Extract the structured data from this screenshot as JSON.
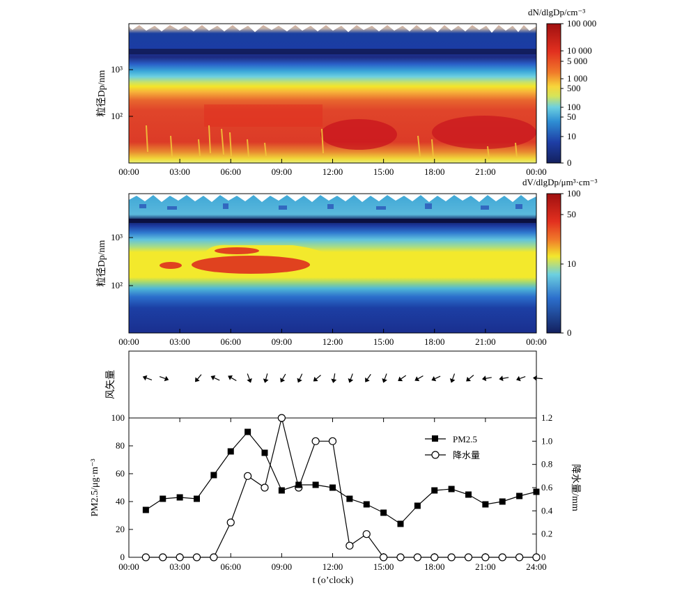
{
  "heatmap_number": {
    "ylabel": "粒径Dp/nm",
    "y_ticks": [
      "10²",
      "10³"
    ],
    "x_ticks": [
      "00:00",
      "03:00",
      "06:00",
      "09:00",
      "12:00",
      "15:00",
      "18:00",
      "21:00",
      "00:00"
    ],
    "colorbar_title": "dN/dlgDp/cm⁻³",
    "colorbar_ticks": [
      "100 000",
      "10 000",
      "5 000",
      "1 000",
      "500",
      "100",
      "50",
      "10",
      "0"
    ]
  },
  "heatmap_volume": {
    "ylabel": "粒径Dp/nm",
    "y_ticks": [
      "10²",
      "10³"
    ],
    "x_ticks": [
      "00:00",
      "03:00",
      "06:00",
      "09:00",
      "12:00",
      "15:00",
      "18:00",
      "21:00",
      "00:00"
    ],
    "colorbar_title": "dV/dlgDp/μm³·cm⁻³",
    "colorbar_ticks": [
      "100",
      "50",
      "10",
      "0"
    ]
  },
  "wind": {
    "ylabel": "风矢量"
  },
  "bottom": {
    "ylabel_left": "PM2.5/μg·m⁻³",
    "ylabel_right": "降水量/mm",
    "xlabel": "t (o’clock)",
    "x_ticks": [
      "00:00",
      "03:00",
      "06:00",
      "09:00",
      "12:00",
      "15:00",
      "18:00",
      "21:00",
      "24:00"
    ],
    "y_left_ticks": [
      "0",
      "20",
      "40",
      "60",
      "80",
      "100"
    ],
    "y_right_ticks": [
      "0",
      "0.2",
      "0.4",
      "0.6",
      "0.8",
      "1.0",
      "1.2"
    ],
    "legend_pm": "PM2.5",
    "legend_rain": "降水量"
  },
  "chart_data": [
    {
      "type": "heatmap",
      "xlabel": "",
      "ylabel": "粒径Dp/nm",
      "x_range": [
        "00:00",
        "00:00"
      ],
      "y_scale": "log",
      "y_range": [
        10,
        10000
      ],
      "colorbar_label": "dN/dlgDp/cm⁻³",
      "colorbar_ticks": [
        0,
        10,
        50,
        100,
        500,
        1000,
        5000,
        10000,
        100000
      ]
    },
    {
      "type": "heatmap",
      "xlabel": "",
      "ylabel": "粒径Dp/nm",
      "x_range": [
        "00:00",
        "00:00"
      ],
      "y_scale": "log",
      "y_range": [
        10,
        10000
      ],
      "colorbar_label": "dV/dlgDp/μm³·cm⁻³",
      "colorbar_ticks": [
        0,
        10,
        50,
        100
      ]
    },
    {
      "type": "scatter",
      "ylabel": "风矢量",
      "x": [
        1,
        2,
        4,
        5,
        6,
        7,
        8,
        9,
        10,
        11,
        12,
        13,
        14,
        15,
        16,
        17,
        18,
        19,
        20,
        21,
        22,
        23,
        24
      ],
      "direction_deg": [
        290,
        110,
        220,
        295,
        300,
        160,
        195,
        210,
        205,
        230,
        190,
        200,
        215,
        200,
        235,
        240,
        245,
        200,
        230,
        260,
        260,
        250,
        275
      ]
    },
    {
      "type": "line",
      "xlabel": "t (o’clock)",
      "x": [
        1,
        2,
        3,
        4,
        5,
        6,
        7,
        8,
        9,
        10,
        11,
        12,
        13,
        14,
        15,
        16,
        17,
        18,
        19,
        20,
        21,
        22,
        23,
        24
      ],
      "xlim": [
        0,
        24
      ],
      "series": [
        {
          "name": "PM2.5",
          "axis": "left",
          "marker": "filled-square",
          "values": [
            34,
            42,
            43,
            42,
            59,
            76,
            90,
            75,
            48,
            52,
            52,
            50,
            42,
            38,
            32,
            24,
            37,
            48,
            49,
            45,
            38,
            40,
            44,
            47
          ]
        },
        {
          "name": "降水量",
          "axis": "right",
          "marker": "open-circle",
          "values": [
            0,
            0,
            0,
            0,
            0,
            0.3,
            0.7,
            0.6,
            1.2,
            0.6,
            1.0,
            1.0,
            0.1,
            0.2,
            0,
            0,
            0,
            0,
            0,
            0,
            0,
            0,
            0,
            0
          ]
        }
      ],
      "ylim_left": [
        0,
        100
      ],
      "ylim_right": [
        0,
        1.2
      ],
      "ylabel_left": "PM2.5/μg·m⁻³",
      "ylabel_right": "降水量/mm",
      "legend_position": "top-right",
      "colors": {
        "pm": "#000000",
        "rain": "#000000",
        "rain_fill": "#ffffff"
      }
    }
  ]
}
